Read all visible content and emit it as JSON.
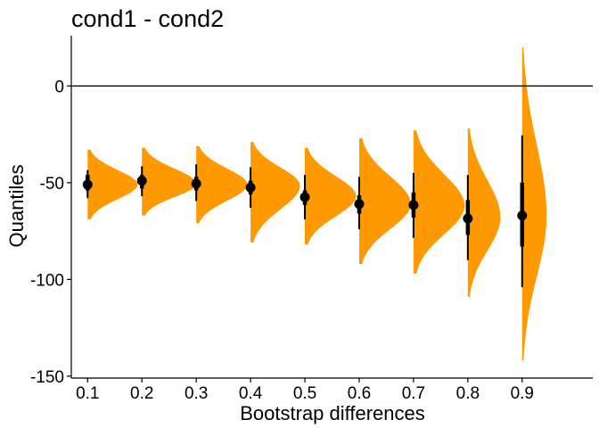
{
  "chart_data": {
    "type": "scatter",
    "title": "cond1 - cond2",
    "xlabel": "Bootstrap differences",
    "ylabel": "Quantiles",
    "x": [
      0.1,
      0.2,
      0.3,
      0.4,
      0.5,
      0.6,
      0.7,
      0.8,
      0.9
    ],
    "x_tick_labels": [
      "0.1",
      "0.2",
      "0.3",
      "0.4",
      "0.5",
      "0.6",
      "0.7",
      "0.8",
      "0.9"
    ],
    "y_ticks": [
      0,
      -50,
      -100,
      -150
    ],
    "y_tick_labels": [
      "0",
      "-50",
      "-100",
      "-150"
    ],
    "xlim": [
      0.07,
      1.03
    ],
    "ylim": [
      -151,
      26
    ],
    "reference_line_y": 0,
    "grid": false,
    "series": [
      {
        "estimate": [
          -51,
          -49,
          -50.5,
          -52.5,
          -57.5,
          -61,
          -61.5,
          -68.5,
          -67
        ],
        "interval_66": [
          [
            -54,
            -46
          ],
          [
            -53,
            -46
          ],
          [
            -54,
            -47
          ],
          [
            -56,
            -49
          ],
          [
            -61.5,
            -54
          ],
          [
            -66,
            -56.5
          ],
          [
            -68,
            -55
          ],
          [
            -77,
            -59
          ],
          [
            -83,
            -50
          ]
        ],
        "interval_95": [
          [
            -58,
            -43.5
          ],
          [
            -57,
            -41.5
          ],
          [
            -59.5,
            -40.5
          ],
          [
            -63,
            -42
          ],
          [
            -69,
            -46
          ],
          [
            -74,
            -47
          ],
          [
            -78.5,
            -45
          ],
          [
            -90,
            -46
          ],
          [
            -104,
            -25.5
          ]
        ],
        "distribution_range": [
          [
            -69,
            -33
          ],
          [
            -67,
            -32
          ],
          [
            -71,
            -31
          ],
          [
            -81,
            -29
          ],
          [
            -82,
            -32
          ],
          [
            -92,
            -27
          ],
          [
            -97,
            -23
          ],
          [
            -109,
            -22
          ],
          [
            -142,
            20
          ]
        ],
        "distribution_peak": [
          -51,
          -50.5,
          -51,
          -51.5,
          -57,
          -61,
          -62,
          -68,
          -67
        ],
        "distribution_max_width": [
          0.092,
          0.1,
          0.094,
          0.091,
          0.094,
          0.095,
          0.094,
          0.06,
          0.045
        ]
      }
    ],
    "colors": {
      "distribution": "#FF9900",
      "points": "#000000",
      "axis": "#000000"
    }
  }
}
